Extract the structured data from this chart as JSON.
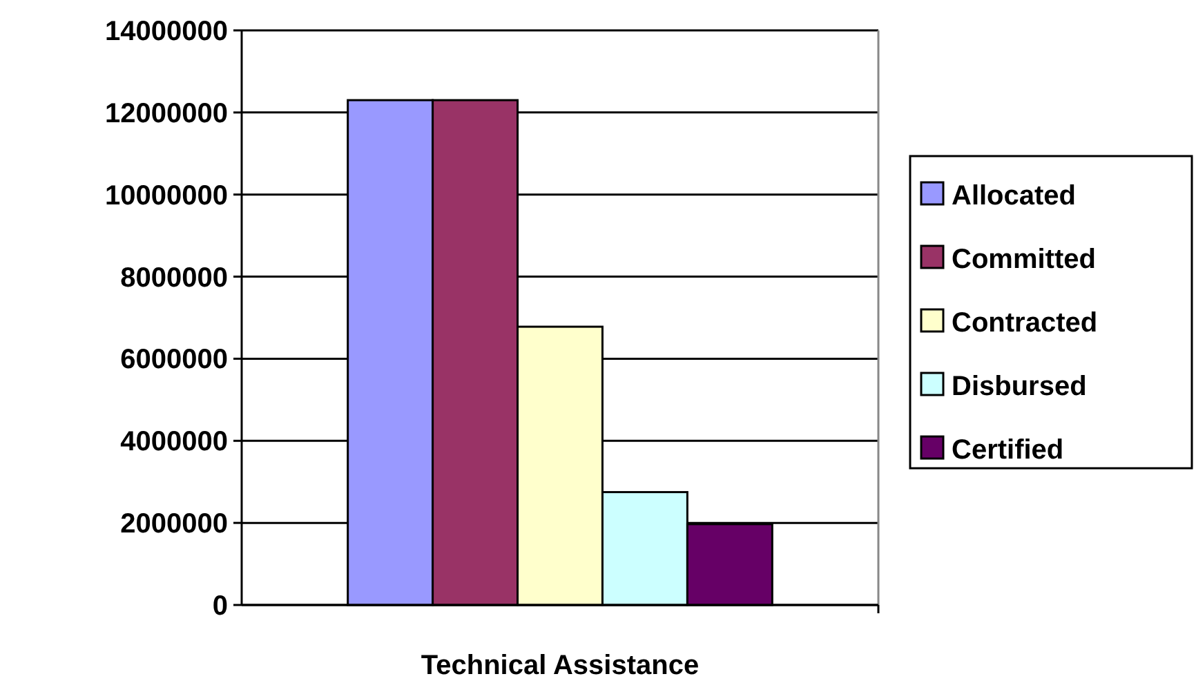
{
  "chart_data": {
    "type": "bar",
    "categories": [
      "Technical Assistance"
    ],
    "series": [
      {
        "name": "Allocated",
        "color": "#9999ff",
        "values": [
          12300000
        ]
      },
      {
        "name": "Committed",
        "color": "#993366",
        "values": [
          12300000
        ]
      },
      {
        "name": "Contracted",
        "color": "#ffffcc",
        "values": [
          6780000
        ]
      },
      {
        "name": "Disbursed",
        "color": "#ccffff",
        "values": [
          2750000
        ]
      },
      {
        "name": "Certified",
        "color": "#660066",
        "values": [
          1970000
        ]
      }
    ],
    "ylim": [
      0,
      14000000
    ],
    "yticks": [
      0,
      2000000,
      4000000,
      6000000,
      8000000,
      10000000,
      12000000,
      14000000
    ],
    "grid": "y",
    "legend": "right"
  }
}
